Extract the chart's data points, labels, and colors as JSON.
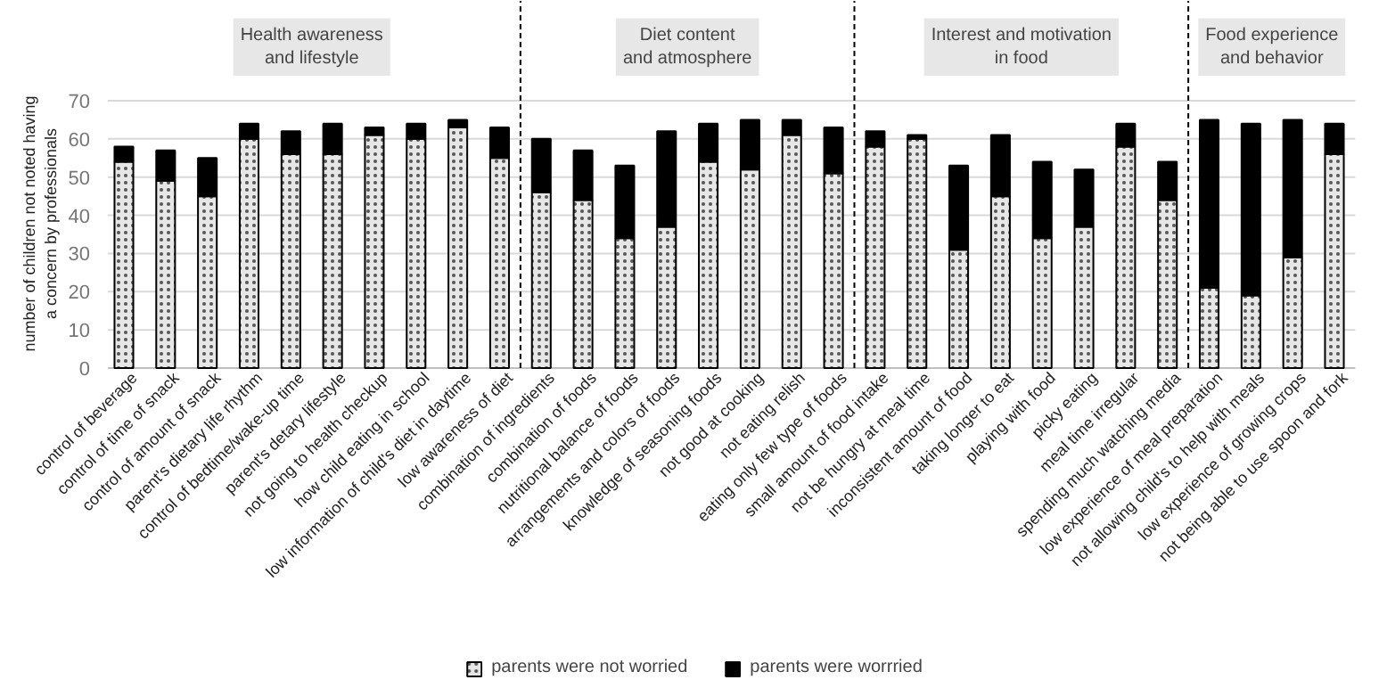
{
  "chart_data": {
    "type": "bar",
    "stacked": true,
    "ylabel": "number of children not noted having a concern by professionals",
    "categories": [
      "control of beverage",
      "control of time of snack",
      "control of amount of snack",
      "parent's dietary life rhythm",
      "control of bedtime/wake-up time",
      "parent's detary lifestyle",
      "not going to health checkup",
      "how child eating in school",
      "low information of child's diet in daytime",
      "low awareness of diet",
      "combination of ingredients",
      "combination of foods",
      "nutritional balance of foods",
      "arrangements and colors of foods",
      "knowledge of seasoning foods",
      "not good at cooking",
      "not eating relish",
      "eating only few type of foods",
      "small amount of food intake",
      "not be hungry at meal time",
      "inconsistent amount of food",
      "taking longer to eat",
      "playing with food",
      "picky eating",
      "meal time irregular",
      "spending much watching media",
      "low experience of meal preparation",
      "not allowing child's to help with meals",
      "low experience of growing crops",
      "not being able to use spoon and fork"
    ],
    "series": [
      {
        "name": "parents were not worried",
        "color": "#e6e6e6",
        "values": [
          54,
          49,
          45,
          60,
          56,
          56,
          61,
          60,
          63,
          55,
          46,
          44,
          34,
          37,
          54,
          52,
          61,
          51,
          58,
          60,
          31,
          45,
          34,
          37,
          58,
          44,
          21,
          19,
          29,
          56
        ]
      },
      {
        "name": "parents were worrried",
        "color": "#000000",
        "values": [
          4,
          8,
          10,
          4,
          6,
          8,
          2,
          4,
          2,
          8,
          14,
          13,
          19,
          25,
          10,
          13,
          4,
          12,
          4,
          1,
          22,
          16,
          20,
          15,
          6,
          10,
          44,
          45,
          36,
          8
        ]
      }
    ],
    "ylim": [
      0,
      70
    ],
    "yticks": [
      0,
      10,
      20,
      30,
      40,
      50,
      60,
      70
    ],
    "grid": "y",
    "legend": "bottom",
    "annotations": [
      "Health awareness and lifestyle",
      "Diet content and atmosphere",
      "Interest and motivation in food",
      "Food experience and behavior"
    ],
    "ref_lines": [
      {
        "axis": "x",
        "value": "low awareness of diet",
        "line_style": "dashed",
        "color": "#000000"
      },
      {
        "axis": "x",
        "value": "eating only few type of foods",
        "line_style": "dashed",
        "color": "#000000"
      },
      {
        "axis": "x",
        "value": "spending much watching media",
        "line_style": "dashed",
        "color": "#000000"
      }
    ]
  }
}
